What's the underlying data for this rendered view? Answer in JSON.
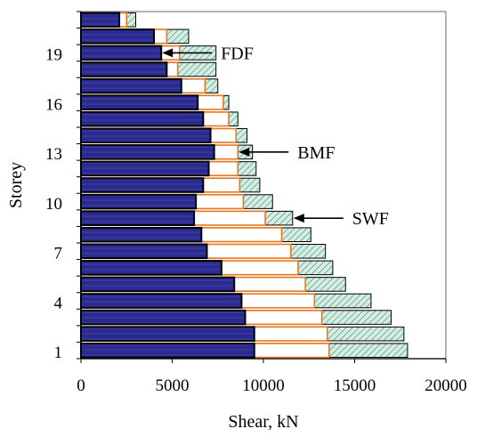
{
  "chart_data": {
    "type": "bar",
    "orientation": "horizontal",
    "stacked_overlay": true,
    "xlabel": "Shear, kN",
    "ylabel": "Storey",
    "xlim": [
      0,
      20000
    ],
    "xticks": [
      "0",
      "5000",
      "10000",
      "15000",
      "20000"
    ],
    "yticks": [
      {
        "storey": 1,
        "label": "1"
      },
      {
        "storey": 4,
        "label": "4"
      },
      {
        "storey": 7,
        "label": "7"
      },
      {
        "storey": 10,
        "label": "10"
      },
      {
        "storey": 13,
        "label": "13"
      },
      {
        "storey": 16,
        "label": "16"
      },
      {
        "storey": 19,
        "label": "19"
      }
    ],
    "grid": false,
    "legend": "none",
    "categories": [
      1,
      2,
      3,
      4,
      5,
      6,
      7,
      8,
      9,
      10,
      11,
      12,
      13,
      14,
      15,
      16,
      17,
      18,
      19,
      20,
      21
    ],
    "series": [
      {
        "name": "FDF",
        "color": "#2b2b8f",
        "values": [
          9500,
          9500,
          9000,
          8800,
          8400,
          7700,
          6900,
          6600,
          6200,
          6300,
          6700,
          7000,
          7300,
          7100,
          6700,
          6400,
          5500,
          4700,
          4400,
          4000,
          2100
        ]
      },
      {
        "name": "BMF",
        "color": "#ffffff",
        "edge": "#e8761d",
        "values": [
          13600,
          13500,
          13200,
          12800,
          12300,
          11900,
          11500,
          11000,
          10100,
          8900,
          8700,
          8600,
          8600,
          8500,
          8100,
          7800,
          6800,
          5300,
          5400,
          4700,
          2500
        ]
      },
      {
        "name": "SWF",
        "color": "#d9ece4",
        "hatch": "#2e9a6e",
        "values": [
          17900,
          17700,
          17000,
          15900,
          14500,
          13800,
          13400,
          12600,
          11600,
          10500,
          9800,
          9600,
          9400,
          9100,
          8600,
          8100,
          7500,
          7400,
          7400,
          5900,
          3000
        ]
      }
    ],
    "annotations": [
      {
        "text": "FDF",
        "points_to_storey": 19
      },
      {
        "text": "BMF",
        "points_to_storey": 13
      },
      {
        "text": "SWF",
        "points_to_storey": 9
      }
    ]
  }
}
